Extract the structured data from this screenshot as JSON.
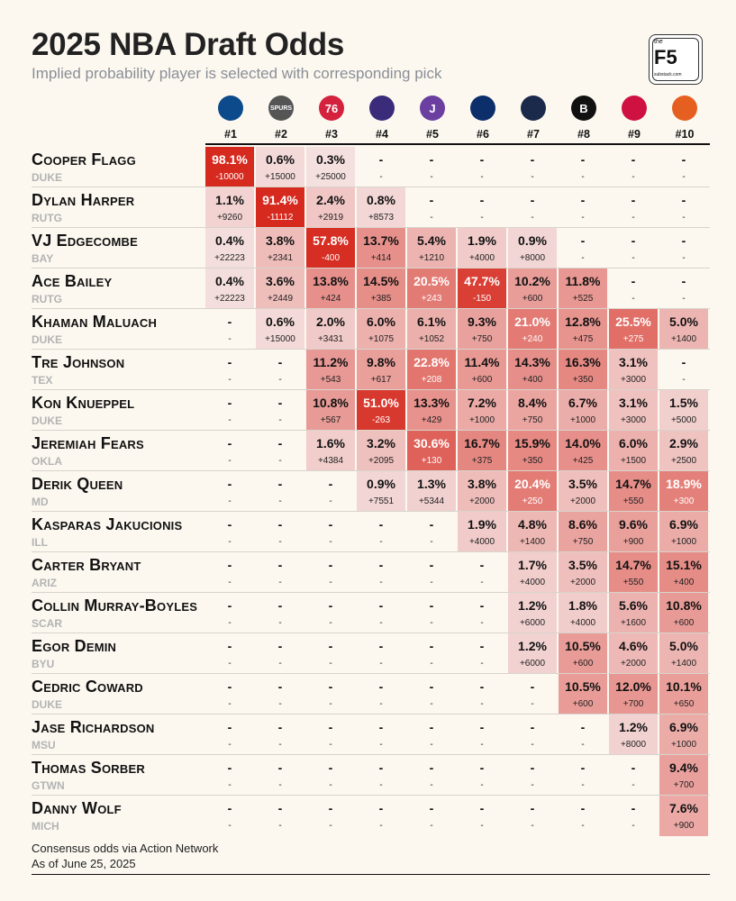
{
  "title": "2025 NBA Draft Odds",
  "subtitle": "Implied probability player is selected with corresponding pick",
  "logo": {
    "the": "the",
    "mark": "F5",
    "site": "substack.com"
  },
  "picks": [
    "#1",
    "#2",
    "#3",
    "#4",
    "#5",
    "#6",
    "#7",
    "#8",
    "#9",
    "#10"
  ],
  "teams": [
    {
      "icon": "mavericks-logo-icon",
      "text": "",
      "color": "#0c4a8c"
    },
    {
      "icon": "spurs-logo-icon",
      "text": "SPURS",
      "color": "#555555"
    },
    {
      "icon": "76ers-logo-icon",
      "text": "76",
      "color": "#d4213d"
    },
    {
      "icon": "hornets-logo-icon",
      "text": "",
      "color": "#3a2c7a"
    },
    {
      "icon": "jazz-logo-icon",
      "text": "J",
      "color": "#6b3fa0"
    },
    {
      "icon": "wizards-logo-icon",
      "text": "",
      "color": "#0c2f6b"
    },
    {
      "icon": "pelicans-logo-icon",
      "text": "",
      "color": "#1b2a4a"
    },
    {
      "icon": "nets-logo-icon",
      "text": "B",
      "color": "#111111"
    },
    {
      "icon": "raptors-logo-icon",
      "text": "",
      "color": "#ce1141"
    },
    {
      "icon": "suns-logo-icon",
      "text": "",
      "color": "#e56020"
    }
  ],
  "players": [
    {
      "name": "Cooper Flagg",
      "school": "DUKE",
      "cells": [
        {
          "pct": "98.1%",
          "odds": "-10000",
          "p": 98.1
        },
        {
          "pct": "0.6%",
          "odds": "+15000",
          "p": 0.6
        },
        {
          "pct": "0.3%",
          "odds": "+25000",
          "p": 0.3
        },
        {
          "pct": "-",
          "odds": "-",
          "p": 0
        },
        {
          "pct": "-",
          "odds": "-",
          "p": 0
        },
        {
          "pct": "-",
          "odds": "-",
          "p": 0
        },
        {
          "pct": "-",
          "odds": "-",
          "p": 0
        },
        {
          "pct": "-",
          "odds": "-",
          "p": 0
        },
        {
          "pct": "-",
          "odds": "-",
          "p": 0
        },
        {
          "pct": "-",
          "odds": "-",
          "p": 0
        }
      ]
    },
    {
      "name": "Dylan Harper",
      "school": "RUTG",
      "cells": [
        {
          "pct": "1.1%",
          "odds": "+9260",
          "p": 1.1
        },
        {
          "pct": "91.4%",
          "odds": "-11112",
          "p": 91.4
        },
        {
          "pct": "2.4%",
          "odds": "+2919",
          "p": 2.4
        },
        {
          "pct": "0.8%",
          "odds": "+8573",
          "p": 0.8
        },
        {
          "pct": "-",
          "odds": "-",
          "p": 0
        },
        {
          "pct": "-",
          "odds": "-",
          "p": 0
        },
        {
          "pct": "-",
          "odds": "-",
          "p": 0
        },
        {
          "pct": "-",
          "odds": "-",
          "p": 0
        },
        {
          "pct": "-",
          "odds": "-",
          "p": 0
        },
        {
          "pct": "-",
          "odds": "-",
          "p": 0
        }
      ]
    },
    {
      "name": "VJ Edgecombe",
      "school": "BAY",
      "cells": [
        {
          "pct": "0.4%",
          "odds": "+22223",
          "p": 0.4
        },
        {
          "pct": "3.8%",
          "odds": "+2341",
          "p": 3.8
        },
        {
          "pct": "57.8%",
          "odds": "-400",
          "p": 57.8
        },
        {
          "pct": "13.7%",
          "odds": "+414",
          "p": 13.7
        },
        {
          "pct": "5.4%",
          "odds": "+1210",
          "p": 5.4
        },
        {
          "pct": "1.9%",
          "odds": "+4000",
          "p": 1.9
        },
        {
          "pct": "0.9%",
          "odds": "+8000",
          "p": 0.9
        },
        {
          "pct": "-",
          "odds": "-",
          "p": 0
        },
        {
          "pct": "-",
          "odds": "-",
          "p": 0
        },
        {
          "pct": "-",
          "odds": "-",
          "p": 0
        }
      ]
    },
    {
      "name": "Ace Bailey",
      "school": "RUTG",
      "cells": [
        {
          "pct": "0.4%",
          "odds": "+22223",
          "p": 0.4
        },
        {
          "pct": "3.6%",
          "odds": "+2449",
          "p": 3.6
        },
        {
          "pct": "13.8%",
          "odds": "+424",
          "p": 13.8
        },
        {
          "pct": "14.5%",
          "odds": "+385",
          "p": 14.5
        },
        {
          "pct": "20.5%",
          "odds": "+243",
          "p": 20.5
        },
        {
          "pct": "47.7%",
          "odds": "-150",
          "p": 47.7
        },
        {
          "pct": "10.2%",
          "odds": "+600",
          "p": 10.2
        },
        {
          "pct": "11.8%",
          "odds": "+525",
          "p": 11.8
        },
        {
          "pct": "-",
          "odds": "-",
          "p": 0
        },
        {
          "pct": "-",
          "odds": "-",
          "p": 0
        }
      ]
    },
    {
      "name": "Khaman Maluach",
      "school": "DUKE",
      "cells": [
        {
          "pct": "-",
          "odds": "-",
          "p": 0
        },
        {
          "pct": "0.6%",
          "odds": "+15000",
          "p": 0.6
        },
        {
          "pct": "2.0%",
          "odds": "+3431",
          "p": 2.0
        },
        {
          "pct": "6.0%",
          "odds": "+1075",
          "p": 6.0
        },
        {
          "pct": "6.1%",
          "odds": "+1052",
          "p": 6.1
        },
        {
          "pct": "9.3%",
          "odds": "+750",
          "p": 9.3
        },
        {
          "pct": "21.0%",
          "odds": "+240",
          "p": 21.0
        },
        {
          "pct": "12.8%",
          "odds": "+475",
          "p": 12.8
        },
        {
          "pct": "25.5%",
          "odds": "+275",
          "p": 25.5
        },
        {
          "pct": "5.0%",
          "odds": "+1400",
          "p": 5.0
        }
      ]
    },
    {
      "name": "Tre Johnson",
      "school": "TEX",
      "cells": [
        {
          "pct": "-",
          "odds": "-",
          "p": 0
        },
        {
          "pct": "-",
          "odds": "-",
          "p": 0
        },
        {
          "pct": "11.2%",
          "odds": "+543",
          "p": 11.2
        },
        {
          "pct": "9.8%",
          "odds": "+617",
          "p": 9.8
        },
        {
          "pct": "22.8%",
          "odds": "+208",
          "p": 22.8
        },
        {
          "pct": "11.4%",
          "odds": "+600",
          "p": 11.4
        },
        {
          "pct": "14.3%",
          "odds": "+400",
          "p": 14.3
        },
        {
          "pct": "16.3%",
          "odds": "+350",
          "p": 16.3
        },
        {
          "pct": "3.1%",
          "odds": "+3000",
          "p": 3.1
        },
        {
          "pct": "-",
          "odds": "-",
          "p": 0
        }
      ]
    },
    {
      "name": "Kon Knueppel",
      "school": "DUKE",
      "cells": [
        {
          "pct": "-",
          "odds": "-",
          "p": 0
        },
        {
          "pct": "-",
          "odds": "-",
          "p": 0
        },
        {
          "pct": "10.8%",
          "odds": "+567",
          "p": 10.8
        },
        {
          "pct": "51.0%",
          "odds": "-263",
          "p": 51.0
        },
        {
          "pct": "13.3%",
          "odds": "+429",
          "p": 13.3
        },
        {
          "pct": "7.2%",
          "odds": "+1000",
          "p": 7.2
        },
        {
          "pct": "8.4%",
          "odds": "+750",
          "p": 8.4
        },
        {
          "pct": "6.7%",
          "odds": "+1000",
          "p": 6.7
        },
        {
          "pct": "3.1%",
          "odds": "+3000",
          "p": 3.1
        },
        {
          "pct": "1.5%",
          "odds": "+5000",
          "p": 1.5
        }
      ]
    },
    {
      "name": "Jeremiah Fears",
      "school": "OKLA",
      "cells": [
        {
          "pct": "-",
          "odds": "-",
          "p": 0
        },
        {
          "pct": "-",
          "odds": "-",
          "p": 0
        },
        {
          "pct": "1.6%",
          "odds": "+4384",
          "p": 1.6
        },
        {
          "pct": "3.2%",
          "odds": "+2095",
          "p": 3.2
        },
        {
          "pct": "30.6%",
          "odds": "+130",
          "p": 30.6
        },
        {
          "pct": "16.7%",
          "odds": "+375",
          "p": 16.7
        },
        {
          "pct": "15.9%",
          "odds": "+350",
          "p": 15.9
        },
        {
          "pct": "14.0%",
          "odds": "+425",
          "p": 14.0
        },
        {
          "pct": "6.0%",
          "odds": "+1500",
          "p": 6.0
        },
        {
          "pct": "2.9%",
          "odds": "+2500",
          "p": 2.9
        }
      ]
    },
    {
      "name": "Derik Queen",
      "school": "MD",
      "cells": [
        {
          "pct": "-",
          "odds": "-",
          "p": 0
        },
        {
          "pct": "-",
          "odds": "-",
          "p": 0
        },
        {
          "pct": "-",
          "odds": "-",
          "p": 0
        },
        {
          "pct": "0.9%",
          "odds": "+7551",
          "p": 0.9
        },
        {
          "pct": "1.3%",
          "odds": "+5344",
          "p": 1.3
        },
        {
          "pct": "3.8%",
          "odds": "+2000",
          "p": 3.8
        },
        {
          "pct": "20.4%",
          "odds": "+250",
          "p": 20.4
        },
        {
          "pct": "3.5%",
          "odds": "+2000",
          "p": 3.5
        },
        {
          "pct": "14.7%",
          "odds": "+550",
          "p": 14.7
        },
        {
          "pct": "18.9%",
          "odds": "+300",
          "p": 18.9
        }
      ]
    },
    {
      "name": "Kasparas Jakucionis",
      "school": "ILL",
      "cells": [
        {
          "pct": "-",
          "odds": "-",
          "p": 0
        },
        {
          "pct": "-",
          "odds": "-",
          "p": 0
        },
        {
          "pct": "-",
          "odds": "-",
          "p": 0
        },
        {
          "pct": "-",
          "odds": "-",
          "p": 0
        },
        {
          "pct": "-",
          "odds": "-",
          "p": 0
        },
        {
          "pct": "1.9%",
          "odds": "+4000",
          "p": 1.9
        },
        {
          "pct": "4.8%",
          "odds": "+1400",
          "p": 4.8
        },
        {
          "pct": "8.6%",
          "odds": "+750",
          "p": 8.6
        },
        {
          "pct": "9.6%",
          "odds": "+900",
          "p": 9.6
        },
        {
          "pct": "6.9%",
          "odds": "+1000",
          "p": 6.9
        }
      ]
    },
    {
      "name": "Carter Bryant",
      "school": "ARIZ",
      "cells": [
        {
          "pct": "-",
          "odds": "-",
          "p": 0
        },
        {
          "pct": "-",
          "odds": "-",
          "p": 0
        },
        {
          "pct": "-",
          "odds": "-",
          "p": 0
        },
        {
          "pct": "-",
          "odds": "-",
          "p": 0
        },
        {
          "pct": "-",
          "odds": "-",
          "p": 0
        },
        {
          "pct": "-",
          "odds": "-",
          "p": 0
        },
        {
          "pct": "1.7%",
          "odds": "+4000",
          "p": 1.7
        },
        {
          "pct": "3.5%",
          "odds": "+2000",
          "p": 3.5
        },
        {
          "pct": "14.7%",
          "odds": "+550",
          "p": 14.7
        },
        {
          "pct": "15.1%",
          "odds": "+400",
          "p": 15.1
        }
      ]
    },
    {
      "name": "Collin Murray-Boyles",
      "school": "SCAR",
      "cells": [
        {
          "pct": "-",
          "odds": "-",
          "p": 0
        },
        {
          "pct": "-",
          "odds": "-",
          "p": 0
        },
        {
          "pct": "-",
          "odds": "-",
          "p": 0
        },
        {
          "pct": "-",
          "odds": "-",
          "p": 0
        },
        {
          "pct": "-",
          "odds": "-",
          "p": 0
        },
        {
          "pct": "-",
          "odds": "-",
          "p": 0
        },
        {
          "pct": "1.2%",
          "odds": "+6000",
          "p": 1.2
        },
        {
          "pct": "1.8%",
          "odds": "+4000",
          "p": 1.8
        },
        {
          "pct": "5.6%",
          "odds": "+1600",
          "p": 5.6
        },
        {
          "pct": "10.8%",
          "odds": "+600",
          "p": 10.8
        }
      ]
    },
    {
      "name": "Egor Demin",
      "school": "BYU",
      "cells": [
        {
          "pct": "-",
          "odds": "-",
          "p": 0
        },
        {
          "pct": "-",
          "odds": "-",
          "p": 0
        },
        {
          "pct": "-",
          "odds": "-",
          "p": 0
        },
        {
          "pct": "-",
          "odds": "-",
          "p": 0
        },
        {
          "pct": "-",
          "odds": "-",
          "p": 0
        },
        {
          "pct": "-",
          "odds": "-",
          "p": 0
        },
        {
          "pct": "1.2%",
          "odds": "+6000",
          "p": 1.2
        },
        {
          "pct": "10.5%",
          "odds": "+600",
          "p": 10.5
        },
        {
          "pct": "4.6%",
          "odds": "+2000",
          "p": 4.6
        },
        {
          "pct": "5.0%",
          "odds": "+1400",
          "p": 5.0
        }
      ]
    },
    {
      "name": "Cedric Coward",
      "school": "DUKE",
      "cells": [
        {
          "pct": "-",
          "odds": "-",
          "p": 0
        },
        {
          "pct": "-",
          "odds": "-",
          "p": 0
        },
        {
          "pct": "-",
          "odds": "-",
          "p": 0
        },
        {
          "pct": "-",
          "odds": "-",
          "p": 0
        },
        {
          "pct": "-",
          "odds": "-",
          "p": 0
        },
        {
          "pct": "-",
          "odds": "-",
          "p": 0
        },
        {
          "pct": "-",
          "odds": "-",
          "p": 0
        },
        {
          "pct": "10.5%",
          "odds": "+600",
          "p": 10.5
        },
        {
          "pct": "12.0%",
          "odds": "+700",
          "p": 12.0
        },
        {
          "pct": "10.1%",
          "odds": "+650",
          "p": 10.1
        }
      ]
    },
    {
      "name": "Jase Richardson",
      "school": "MSU",
      "cells": [
        {
          "pct": "-",
          "odds": "-",
          "p": 0
        },
        {
          "pct": "-",
          "odds": "-",
          "p": 0
        },
        {
          "pct": "-",
          "odds": "-",
          "p": 0
        },
        {
          "pct": "-",
          "odds": "-",
          "p": 0
        },
        {
          "pct": "-",
          "odds": "-",
          "p": 0
        },
        {
          "pct": "-",
          "odds": "-",
          "p": 0
        },
        {
          "pct": "-",
          "odds": "-",
          "p": 0
        },
        {
          "pct": "-",
          "odds": "-",
          "p": 0
        },
        {
          "pct": "1.2%",
          "odds": "+8000",
          "p": 1.2
        },
        {
          "pct": "6.9%",
          "odds": "+1000",
          "p": 6.9
        }
      ]
    },
    {
      "name": "Thomas Sorber",
      "school": "GTWN",
      "cells": [
        {
          "pct": "-",
          "odds": "-",
          "p": 0
        },
        {
          "pct": "-",
          "odds": "-",
          "p": 0
        },
        {
          "pct": "-",
          "odds": "-",
          "p": 0
        },
        {
          "pct": "-",
          "odds": "-",
          "p": 0
        },
        {
          "pct": "-",
          "odds": "-",
          "p": 0
        },
        {
          "pct": "-",
          "odds": "-",
          "p": 0
        },
        {
          "pct": "-",
          "odds": "-",
          "p": 0
        },
        {
          "pct": "-",
          "odds": "-",
          "p": 0
        },
        {
          "pct": "-",
          "odds": "-",
          "p": 0
        },
        {
          "pct": "9.4%",
          "odds": "+700",
          "p": 9.4
        }
      ]
    },
    {
      "name": "Danny Wolf",
      "school": "MICH",
      "cells": [
        {
          "pct": "-",
          "odds": "-",
          "p": 0
        },
        {
          "pct": "-",
          "odds": "-",
          "p": 0
        },
        {
          "pct": "-",
          "odds": "-",
          "p": 0
        },
        {
          "pct": "-",
          "odds": "-",
          "p": 0
        },
        {
          "pct": "-",
          "odds": "-",
          "p": 0
        },
        {
          "pct": "-",
          "odds": "-",
          "p": 0
        },
        {
          "pct": "-",
          "odds": "-",
          "p": 0
        },
        {
          "pct": "-",
          "odds": "-",
          "p": 0
        },
        {
          "pct": "-",
          "odds": "-",
          "p": 0
        },
        {
          "pct": "7.6%",
          "odds": "+900",
          "p": 7.6
        }
      ]
    }
  ],
  "footer": {
    "line1": "Consensus odds via Action Network",
    "line2": "As of June 25, 2025"
  },
  "colors": {
    "background": "#fcf8f0",
    "heat_max": "#d62a1f",
    "heat_min": "#f6eeee"
  }
}
